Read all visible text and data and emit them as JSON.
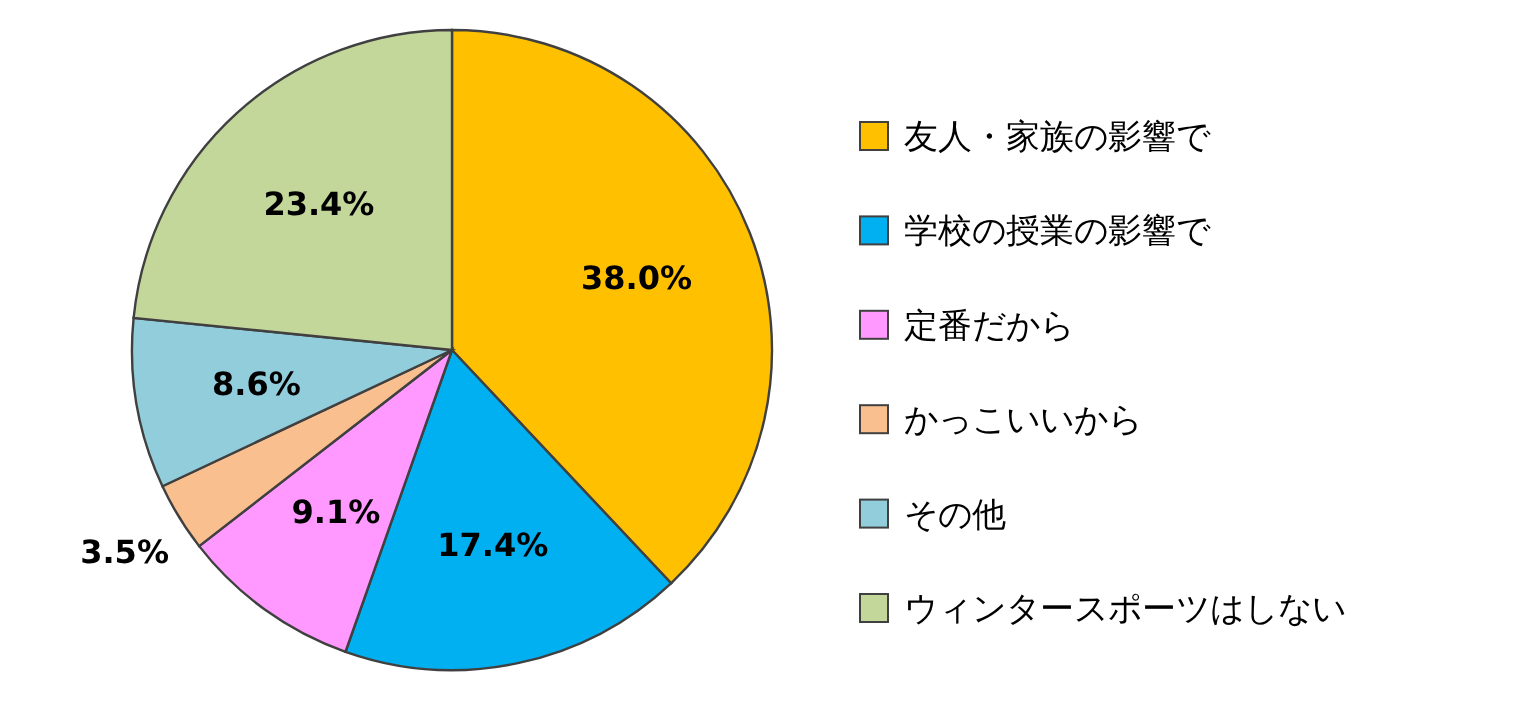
{
  "chart_data": {
    "type": "pie",
    "categories": [
      "友人・家族の影響で",
      "学校の授業の影響で",
      "定番だから",
      "かっこいいから",
      "その他",
      "ウィンタースポーツはしない"
    ],
    "values": [
      38.0,
      17.4,
      9.1,
      3.5,
      8.6,
      23.4
    ],
    "colors": [
      "#ffc000",
      "#00b0f0",
      "#ff99ff",
      "#fabf8f",
      "#92cddc",
      "#c4d79b"
    ],
    "value_labels": [
      "38.0%",
      "17.4%",
      "9.1%",
      "3.5%",
      "8.6%",
      "23.4%"
    ],
    "legend": "right"
  }
}
